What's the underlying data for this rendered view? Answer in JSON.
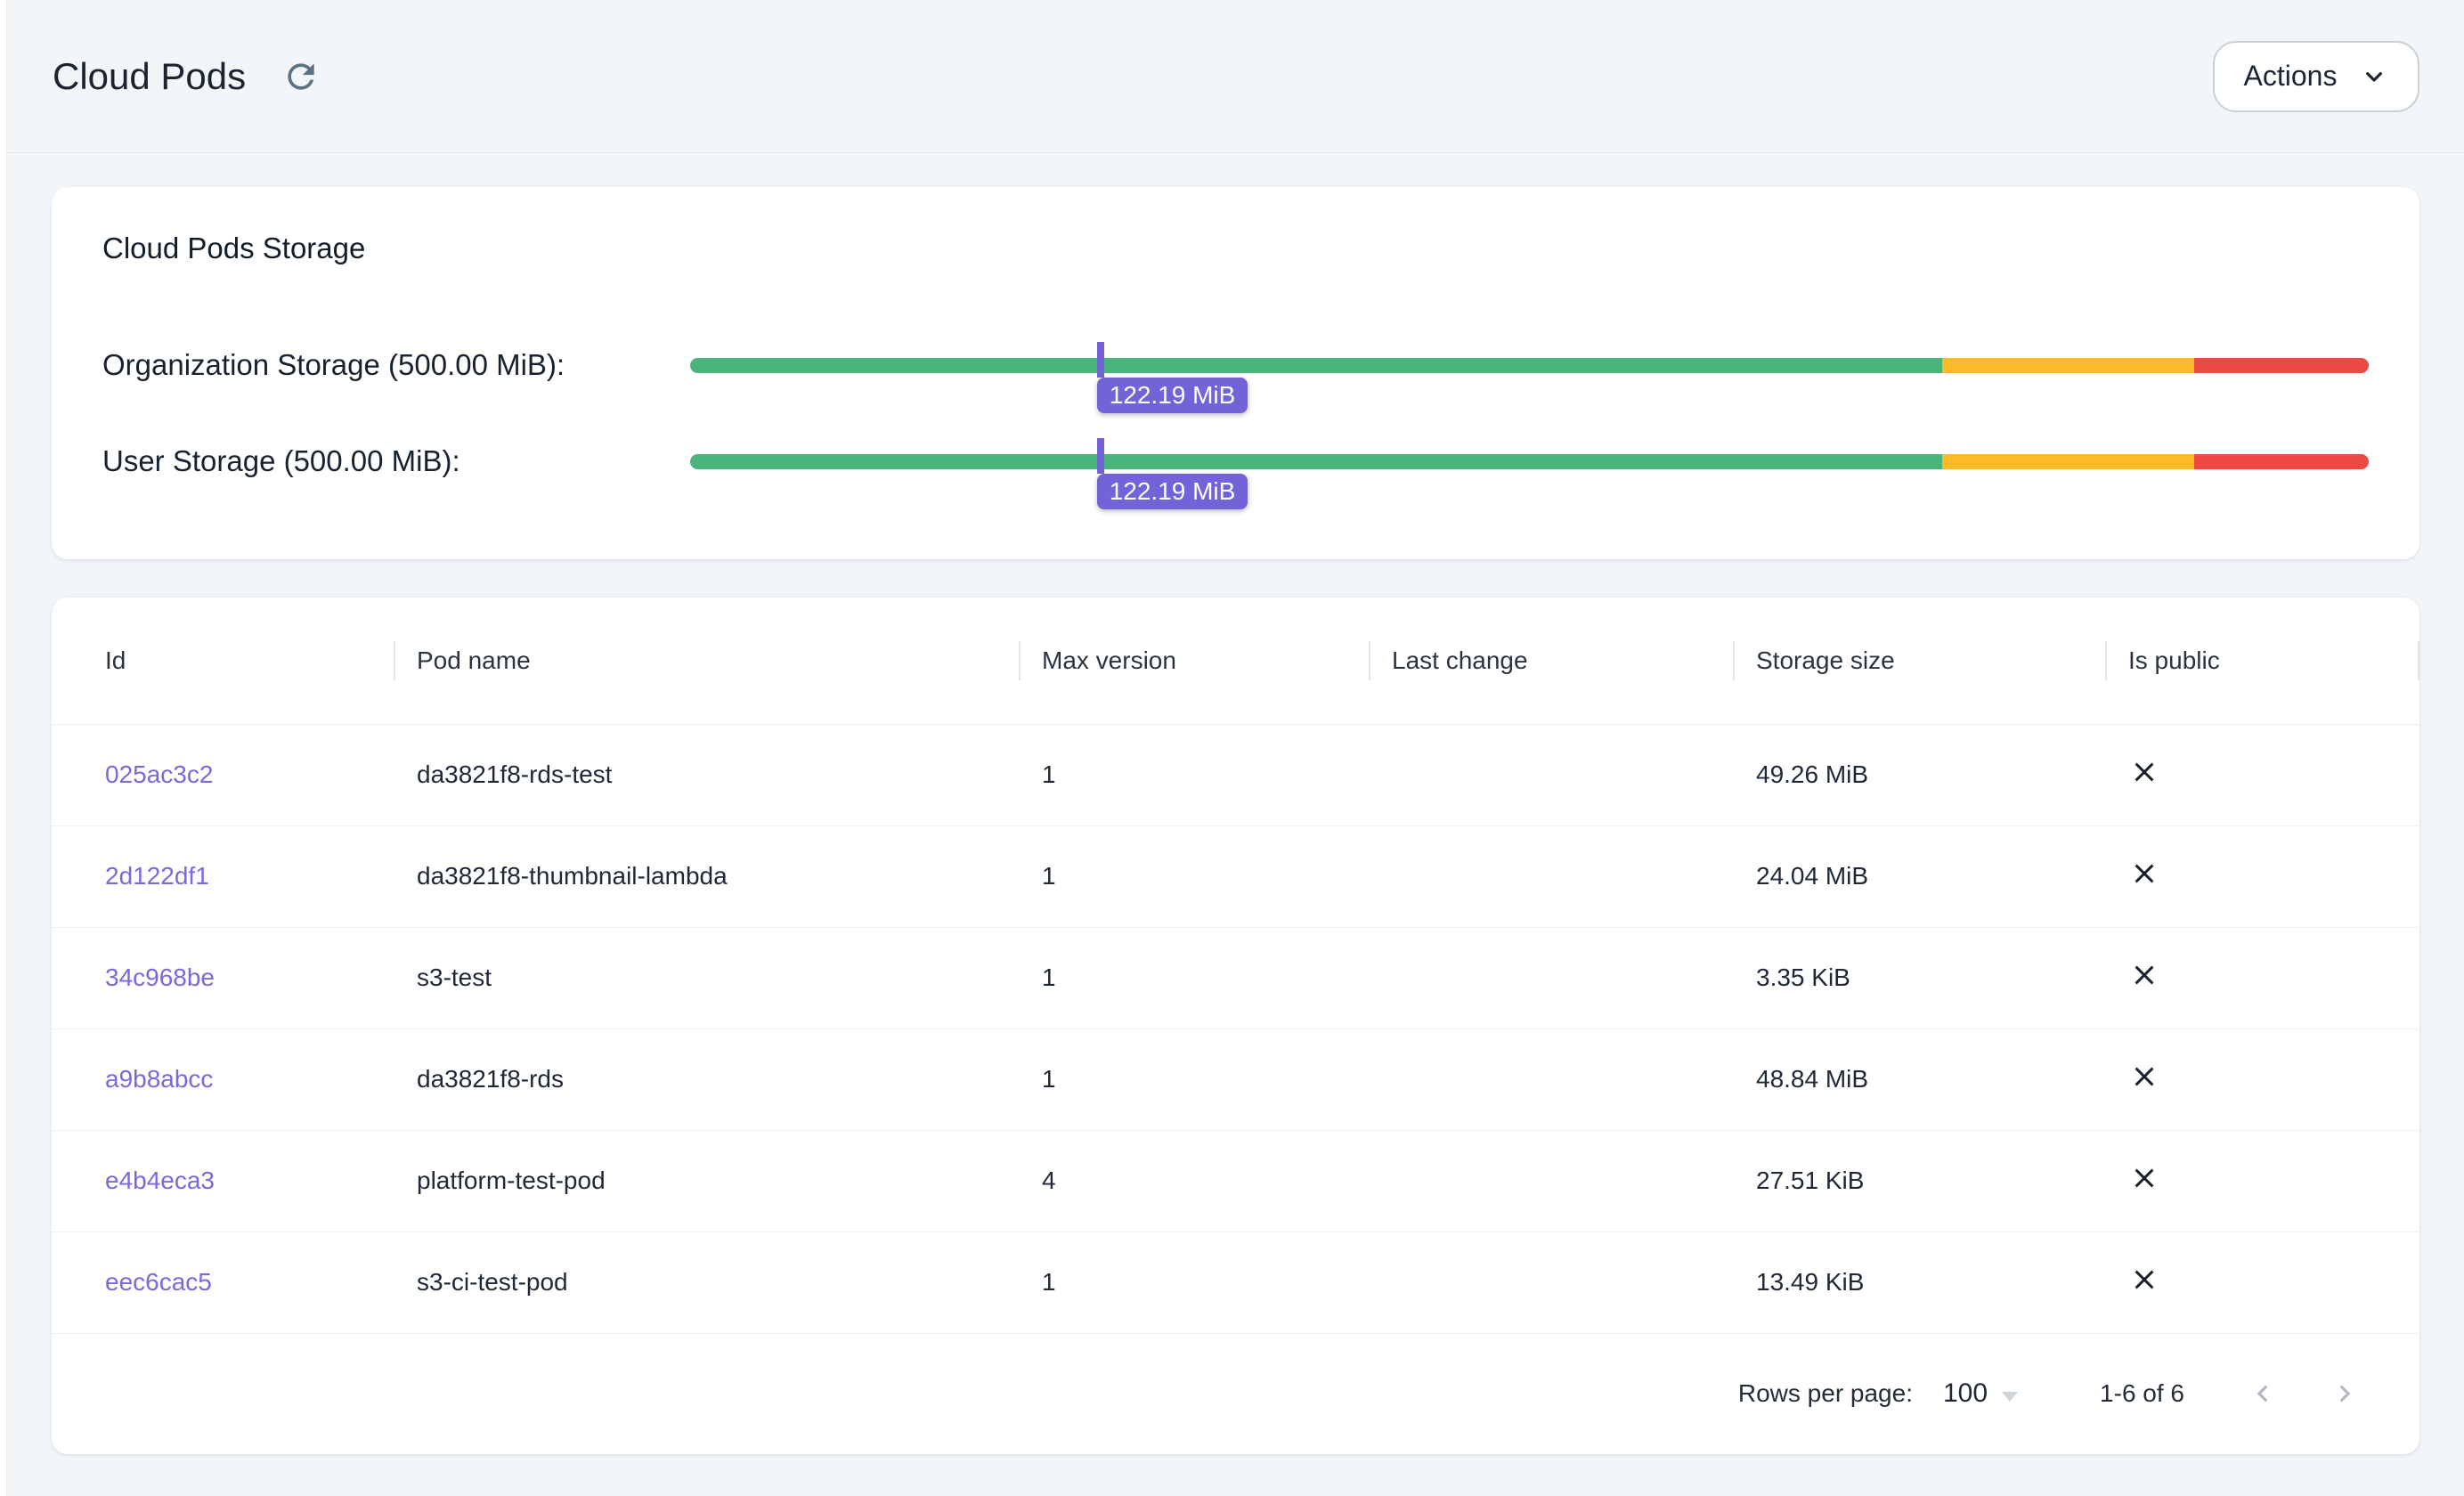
{
  "colors": {
    "accent_purple": "#7363d8",
    "link_purple": "#7c68dd",
    "bar_green": "#49b47b",
    "bar_yellow": "#fdb927",
    "bar_red": "#ee4943",
    "icon_slate": "#5d7183",
    "icon_gray": "#aeb5bc",
    "x_icon_color": "#1a212b"
  },
  "header": {
    "title": "Cloud Pods",
    "refresh_icon": "refresh-icon",
    "actions_label": "Actions"
  },
  "storage_card": {
    "title": "Cloud Pods Storage",
    "bars": [
      {
        "label": "Organization Storage (500.00 MiB):",
        "capacity": "500.00 MiB",
        "used": "122.19 MiB",
        "tooltip": "122.19 MiB",
        "marker_percent": 24.44,
        "segments": {
          "green": 74.6,
          "yellow": 15.0,
          "red": 10.4
        }
      },
      {
        "label": "User Storage (500.00 MiB):",
        "capacity": "500.00 MiB",
        "used": "122.19 MiB",
        "tooltip": "122.19 MiB",
        "marker_percent": 24.44,
        "segments": {
          "green": 74.6,
          "yellow": 15.0,
          "red": 10.4
        }
      }
    ]
  },
  "table": {
    "columns": [
      "Id",
      "Pod name",
      "Max version",
      "Last change",
      "Storage size",
      "Is public"
    ],
    "rows": [
      {
        "id": "025ac3c2",
        "pod_name": "da3821f8-rds-test",
        "max_version": "1",
        "last_change": "",
        "storage_size": "49.26 MiB",
        "is_public": false
      },
      {
        "id": "2d122df1",
        "pod_name": "da3821f8-thumbnail-lambda",
        "max_version": "1",
        "last_change": "",
        "storage_size": "24.04 MiB",
        "is_public": false
      },
      {
        "id": "34c968be",
        "pod_name": "s3-test",
        "max_version": "1",
        "last_change": "",
        "storage_size": "3.35 KiB",
        "is_public": false
      },
      {
        "id": "a9b8abcc",
        "pod_name": "da3821f8-rds",
        "max_version": "1",
        "last_change": "",
        "storage_size": "48.84 MiB",
        "is_public": false
      },
      {
        "id": "e4b4eca3",
        "pod_name": "platform-test-pod",
        "max_version": "4",
        "last_change": "",
        "storage_size": "27.51 KiB",
        "is_public": false
      },
      {
        "id": "eec6cac5",
        "pod_name": "s3-ci-test-pod",
        "max_version": "1",
        "last_change": "",
        "storage_size": "13.49 KiB",
        "is_public": false
      }
    ],
    "footer": {
      "rows_per_page_label": "Rows per page:",
      "rows_per_page_value": "100",
      "range_label": "1-6 of 6"
    }
  }
}
